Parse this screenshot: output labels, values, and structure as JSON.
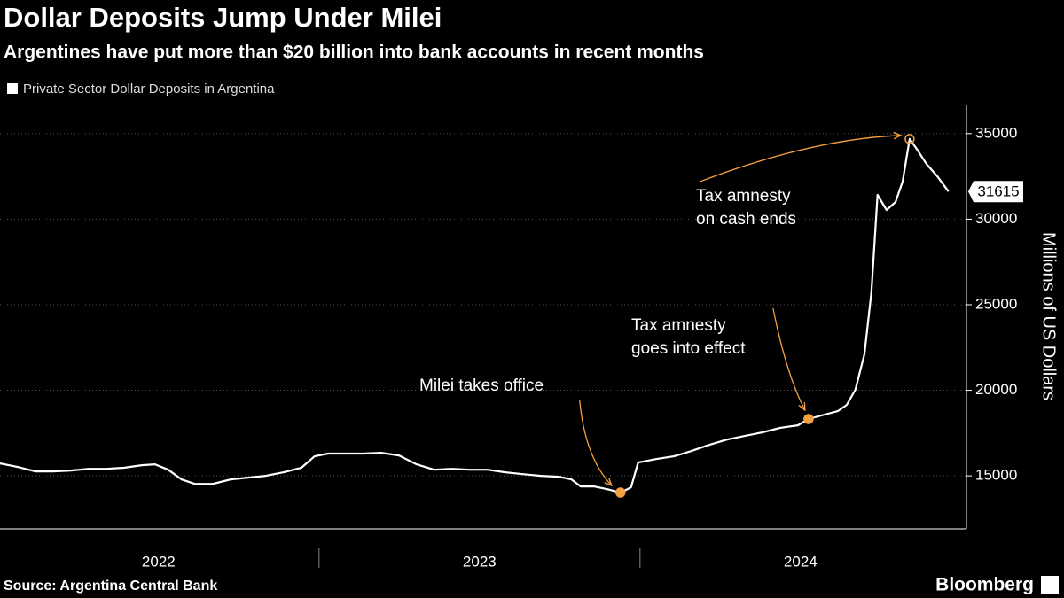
{
  "chart_data": {
    "type": "line",
    "title": "Dollar Deposits Jump Under Milei",
    "subtitle": "Argentines have put more than $20 billion into bank accounts in recent months",
    "y_label": "Millions of US Dollars",
    "source": "Source: Argentina Central Bank",
    "brand": "Bloomberg",
    "x": [
      2022.006,
      2022.061,
      2022.116,
      2022.171,
      2022.227,
      2022.282,
      2022.337,
      2022.392,
      2022.448,
      2022.489,
      2022.53,
      2022.572,
      2022.613,
      2022.669,
      2022.724,
      2022.779,
      2022.834,
      2022.89,
      2022.945,
      2022.986,
      2023.028,
      2023.083,
      2023.138,
      2023.193,
      2023.249,
      2023.304,
      2023.359,
      2023.414,
      2023.47,
      2023.525,
      2023.58,
      2023.635,
      2023.691,
      2023.746,
      2023.787,
      2023.815,
      2023.856,
      2023.898,
      2023.939,
      2023.972,
      2023.994,
      2024.05,
      2024.105,
      2024.16,
      2024.215,
      2024.271,
      2024.326,
      2024.381,
      2024.436,
      2024.492,
      2024.525,
      2024.575,
      2024.616,
      2024.644,
      2024.671,
      2024.699,
      2024.721,
      2024.74,
      2024.768,
      2024.796,
      2024.818,
      2024.84,
      2024.865,
      2024.892,
      2024.928,
      2024.961
    ],
    "series": [
      {
        "name": "Private Sector Dollar Deposits in Argentina",
        "color": "#ffffff",
        "values": [
          15725,
          15520,
          15260,
          15260,
          15310,
          15410,
          15410,
          15470,
          15620,
          15675,
          15360,
          14790,
          14530,
          14530,
          14790,
          14900,
          15000,
          15210,
          15470,
          16140,
          16300,
          16300,
          16300,
          16350,
          16190,
          15670,
          15360,
          15410,
          15360,
          15360,
          15210,
          15100,
          15000,
          14950,
          14790,
          14380,
          14380,
          14220,
          14020,
          14330,
          15780,
          15980,
          16140,
          16450,
          16810,
          17120,
          17330,
          17540,
          17800,
          17950,
          18320,
          18580,
          18780,
          19150,
          20030,
          22100,
          25730,
          31420,
          30540,
          31000,
          32200,
          34690,
          34020,
          33240,
          32460,
          31615
        ]
      }
    ],
    "annotations": [
      {
        "lines": [
          "Milei takes office"
        ],
        "index": 38
      },
      {
        "lines": [
          "Tax amnesty",
          "goes into effect"
        ],
        "index": 50
      },
      {
        "lines": [
          "Tax amnesty",
          "on cash ends"
        ],
        "index": 61
      }
    ],
    "annotation_color": "#f5a142",
    "xlim": [
      2022.006,
      2025.017
    ],
    "xticks": [
      {
        "value": 2022,
        "label": "2022"
      },
      {
        "value": 2023,
        "label": "2023"
      },
      {
        "value": 2024,
        "label": "2024"
      }
    ],
    "ylim": [
      11900,
      36700
    ],
    "yticks": [
      15000,
      20000,
      25000,
      30000,
      35000
    ],
    "grid": true
  }
}
